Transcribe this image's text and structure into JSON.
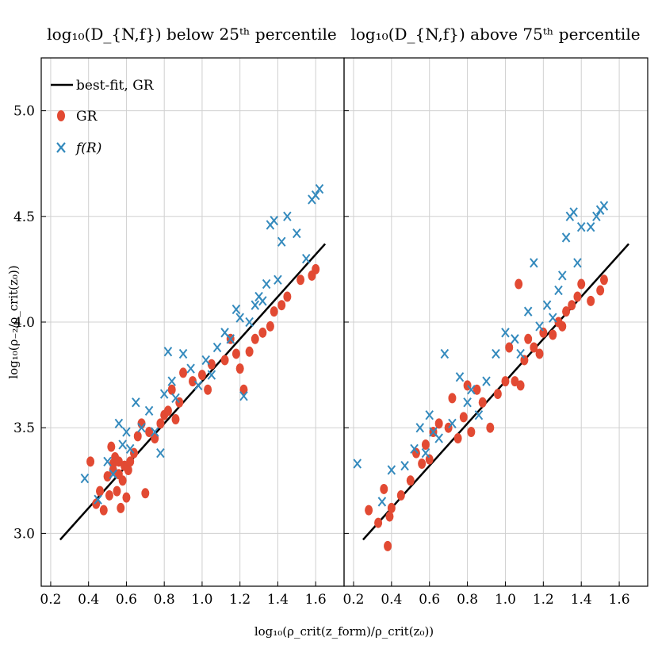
{
  "chart_data": {
    "type": "scatter",
    "xlabel": "log₁₀(ρ_crit(z_form)/ρ_crit(z₀))",
    "ylabel": "log₁₀(ρ₋₂/ρ_crit(z₀))",
    "xlim": [
      0.15,
      1.75
    ],
    "ylim": [
      2.75,
      5.25
    ],
    "xticks": [
      "0.2",
      "0.4",
      "0.6",
      "0.8",
      "1.0",
      "1.2",
      "1.4",
      "1.6"
    ],
    "yticks": [
      "3.0",
      "3.5",
      "4.0",
      "4.5",
      "5.0"
    ],
    "grid": true,
    "sharey": true,
    "legend": {
      "placement": "top-left",
      "panel": 0,
      "entries": [
        "best-fit, GR",
        "GR",
        "f(R)"
      ]
    },
    "colors": {
      "fit": "#000000",
      "GR": "#e24a33",
      "fR": "#348abd",
      "grid": "#d0d0d0"
    },
    "panels": [
      {
        "title": "log₁₀(D_{N,f}) below 25ᵗʰ percentile",
        "series": [
          {
            "name": "best-fit, GR",
            "type": "line",
            "x": [
              0.25,
              1.65
            ],
            "y": [
              2.97,
              4.37
            ]
          },
          {
            "name": "GR",
            "type": "scatter",
            "marker": "circle",
            "x": [
              0.41,
              0.44,
              0.46,
              0.48,
              0.5,
              0.51,
              0.52,
              0.53,
              0.53,
              0.54,
              0.55,
              0.56,
              0.56,
              0.57,
              0.58,
              0.59,
              0.6,
              0.61,
              0.62,
              0.64,
              0.66,
              0.68,
              0.7,
              0.72,
              0.75,
              0.78,
              0.8,
              0.82,
              0.84,
              0.86,
              0.88,
              0.9,
              0.95,
              1.0,
              1.03,
              1.05,
              1.12,
              1.15,
              1.18,
              1.2,
              1.22,
              1.25,
              1.28,
              1.32,
              1.36,
              1.38,
              1.42,
              1.45,
              1.52,
              1.58,
              1.6
            ],
            "y": [
              3.34,
              3.14,
              3.2,
              3.11,
              3.27,
              3.18,
              3.41,
              3.33,
              3.3,
              3.36,
              3.2,
              3.28,
              3.34,
              3.12,
              3.25,
              3.32,
              3.17,
              3.3,
              3.34,
              3.38,
              3.46,
              3.52,
              3.19,
              3.48,
              3.45,
              3.52,
              3.56,
              3.58,
              3.68,
              3.54,
              3.62,
              3.76,
              3.72,
              3.75,
              3.68,
              3.8,
              3.82,
              3.92,
              3.85,
              3.78,
              3.68,
              3.86,
              3.92,
              3.95,
              3.98,
              4.05,
              4.08,
              4.12,
              4.2,
              4.22,
              4.25
            ]
          },
          {
            "name": "f(R)",
            "type": "scatter",
            "marker": "x",
            "x": [
              0.38,
              0.45,
              0.5,
              0.53,
              0.56,
              0.58,
              0.6,
              0.62,
              0.65,
              0.68,
              0.72,
              0.75,
              0.78,
              0.8,
              0.82,
              0.84,
              0.86,
              0.9,
              0.94,
              0.98,
              1.02,
              1.05,
              1.08,
              1.12,
              1.15,
              1.18,
              1.2,
              1.22,
              1.25,
              1.28,
              1.3,
              1.32,
              1.34,
              1.36,
              1.38,
              1.4,
              1.42,
              1.45,
              1.5,
              1.55,
              1.58,
              1.6,
              1.62
            ],
            "y": [
              3.26,
              3.16,
              3.34,
              3.28,
              3.52,
              3.42,
              3.48,
              3.4,
              3.62,
              3.5,
              3.58,
              3.48,
              3.38,
              3.66,
              3.86,
              3.72,
              3.64,
              3.85,
              3.78,
              3.7,
              3.82,
              3.75,
              3.88,
              3.95,
              3.92,
              4.06,
              4.02,
              3.65,
              4.0,
              4.08,
              4.12,
              4.1,
              4.18,
              4.46,
              4.48,
              4.2,
              4.38,
              4.5,
              4.42,
              4.3,
              4.58,
              4.6,
              4.63
            ]
          }
        ]
      },
      {
        "title": "log₁₀(D_{N,f}) above 75ᵗʰ percentile",
        "series": [
          {
            "name": "best-fit, GR",
            "type": "line",
            "x": [
              0.25,
              1.65
            ],
            "y": [
              2.97,
              4.37
            ]
          },
          {
            "name": "GR",
            "type": "scatter",
            "marker": "circle",
            "x": [
              0.28,
              0.33,
              0.36,
              0.38,
              0.39,
              0.4,
              0.45,
              0.5,
              0.53,
              0.56,
              0.58,
              0.6,
              0.62,
              0.65,
              0.7,
              0.72,
              0.75,
              0.78,
              0.8,
              0.82,
              0.85,
              0.88,
              0.92,
              0.96,
              1.0,
              1.02,
              1.05,
              1.07,
              1.08,
              1.1,
              1.12,
              1.15,
              1.18,
              1.2,
              1.25,
              1.28,
              1.3,
              1.32,
              1.35,
              1.38,
              1.4,
              1.45,
              1.5,
              1.52
            ],
            "y": [
              3.11,
              3.05,
              3.21,
              2.94,
              3.08,
              3.12,
              3.18,
              3.25,
              3.38,
              3.33,
              3.42,
              3.35,
              3.48,
              3.52,
              3.5,
              3.64,
              3.45,
              3.55,
              3.7,
              3.48,
              3.68,
              3.62,
              3.5,
              3.66,
              3.72,
              3.88,
              3.72,
              4.18,
              3.7,
              3.82,
              3.92,
              3.88,
              3.85,
              3.95,
              3.94,
              4.0,
              3.98,
              4.05,
              4.08,
              4.12,
              4.18,
              4.1,
              4.15,
              4.2
            ]
          },
          {
            "name": "f(R)",
            "type": "scatter",
            "marker": "x",
            "x": [
              0.22,
              0.35,
              0.4,
              0.47,
              0.52,
              0.55,
              0.58,
              0.6,
              0.62,
              0.65,
              0.68,
              0.72,
              0.76,
              0.8,
              0.82,
              0.86,
              0.9,
              0.95,
              1.0,
              1.05,
              1.08,
              1.12,
              1.15,
              1.18,
              1.22,
              1.25,
              1.28,
              1.3,
              1.32,
              1.34,
              1.36,
              1.38,
              1.4,
              1.45,
              1.48,
              1.5,
              1.52
            ],
            "y": [
              3.33,
              3.15,
              3.3,
              3.32,
              3.4,
              3.5,
              3.38,
              3.56,
              3.48,
              3.45,
              3.85,
              3.52,
              3.74,
              3.62,
              3.68,
              3.56,
              3.72,
              3.85,
              3.95,
              3.92,
              3.85,
              4.05,
              4.28,
              3.98,
              4.08,
              4.02,
              4.15,
              4.22,
              4.4,
              4.5,
              4.52,
              4.28,
              4.45,
              4.45,
              4.5,
              4.53,
              4.55
            ]
          }
        ]
      }
    ]
  }
}
